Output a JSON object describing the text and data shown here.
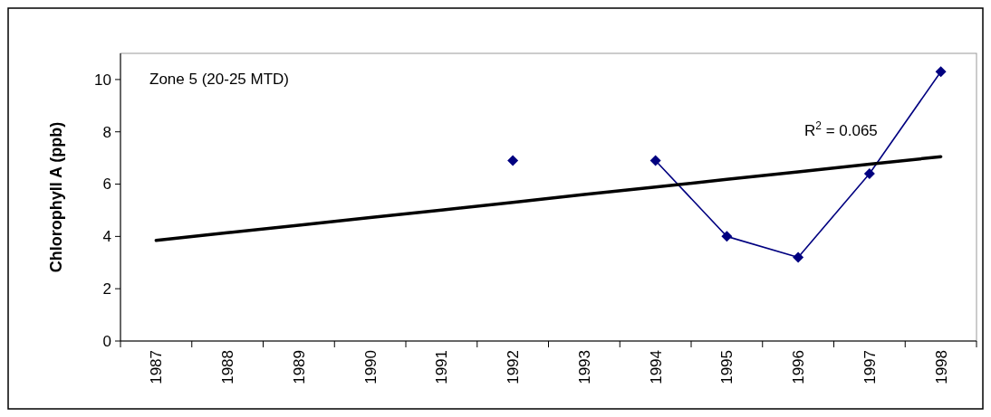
{
  "chart_data": {
    "type": "line",
    "ylabel": "Chlorophyll A (ppb)",
    "categories": [
      "1987",
      "1988",
      "1989",
      "1990",
      "1991",
      "1992",
      "1993",
      "1994",
      "1995",
      "1996",
      "1997",
      "1998"
    ],
    "series": [
      {
        "color": "#000080",
        "marker": "diamond",
        "values": [
          null,
          null,
          null,
          null,
          null,
          6.9,
          null,
          6.9,
          4.0,
          3.2,
          6.4,
          10.3
        ]
      },
      {
        "type": "line",
        "color": "#000000",
        "marker": "none",
        "values": [
          3.85,
          4.14,
          4.43,
          4.72,
          5.01,
          5.3,
          5.6,
          5.89,
          6.18,
          6.47,
          6.76,
          7.05
        ]
      }
    ],
    "ylim": [
      0,
      11
    ],
    "yticks": [
      0,
      2,
      4,
      6,
      8,
      10
    ],
    "grid": false,
    "annotations": [
      "Zone 5 (20-25 MTD)",
      "R$^{2}$ = 0.065"
    ]
  }
}
